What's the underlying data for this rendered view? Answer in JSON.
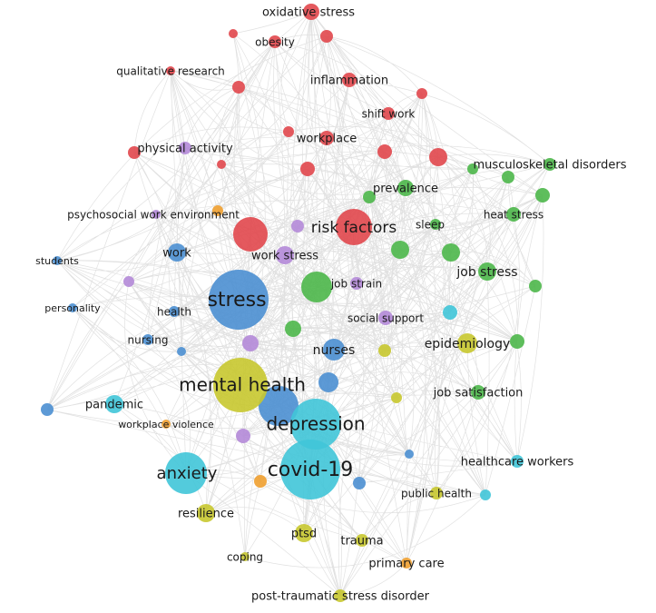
{
  "nodes": [
    {
      "label": "oxidative stress"
    },
    {
      "label": "obesity"
    },
    {
      "label": "qualitative research"
    },
    {
      "label": "inflammation"
    },
    {
      "label": "shift work"
    },
    {
      "label": "workplace"
    },
    {
      "label": "physical activity"
    },
    {
      "label": "musculoskeletal disorders"
    },
    {
      "label": "prevalence"
    },
    {
      "label": "psychosocial work environment"
    },
    {
      "label": "heat stress"
    },
    {
      "label": "sleep"
    },
    {
      "label": "risk factors"
    },
    {
      "label": "work"
    },
    {
      "label": "work stress"
    },
    {
      "label": "students"
    },
    {
      "label": "job stress"
    },
    {
      "label": "job strain"
    },
    {
      "label": "stress"
    },
    {
      "label": "personality"
    },
    {
      "label": "health"
    },
    {
      "label": "social support"
    },
    {
      "label": "nursing"
    },
    {
      "label": "epidemiology"
    },
    {
      "label": "nurses"
    },
    {
      "label": "mental health"
    },
    {
      "label": "job satisfaction"
    },
    {
      "label": "pandemic"
    },
    {
      "label": "depression"
    },
    {
      "label": "workplace violence"
    },
    {
      "label": "healthcare workers"
    },
    {
      "label": "covid-19"
    },
    {
      "label": "anxiety"
    },
    {
      "label": "public health"
    },
    {
      "label": "resilience"
    },
    {
      "label": "ptsd"
    },
    {
      "label": "trauma"
    },
    {
      "label": "coping"
    },
    {
      "label": "primary care"
    },
    {
      "label": "post-traumatic stress disorder"
    }
  ]
}
